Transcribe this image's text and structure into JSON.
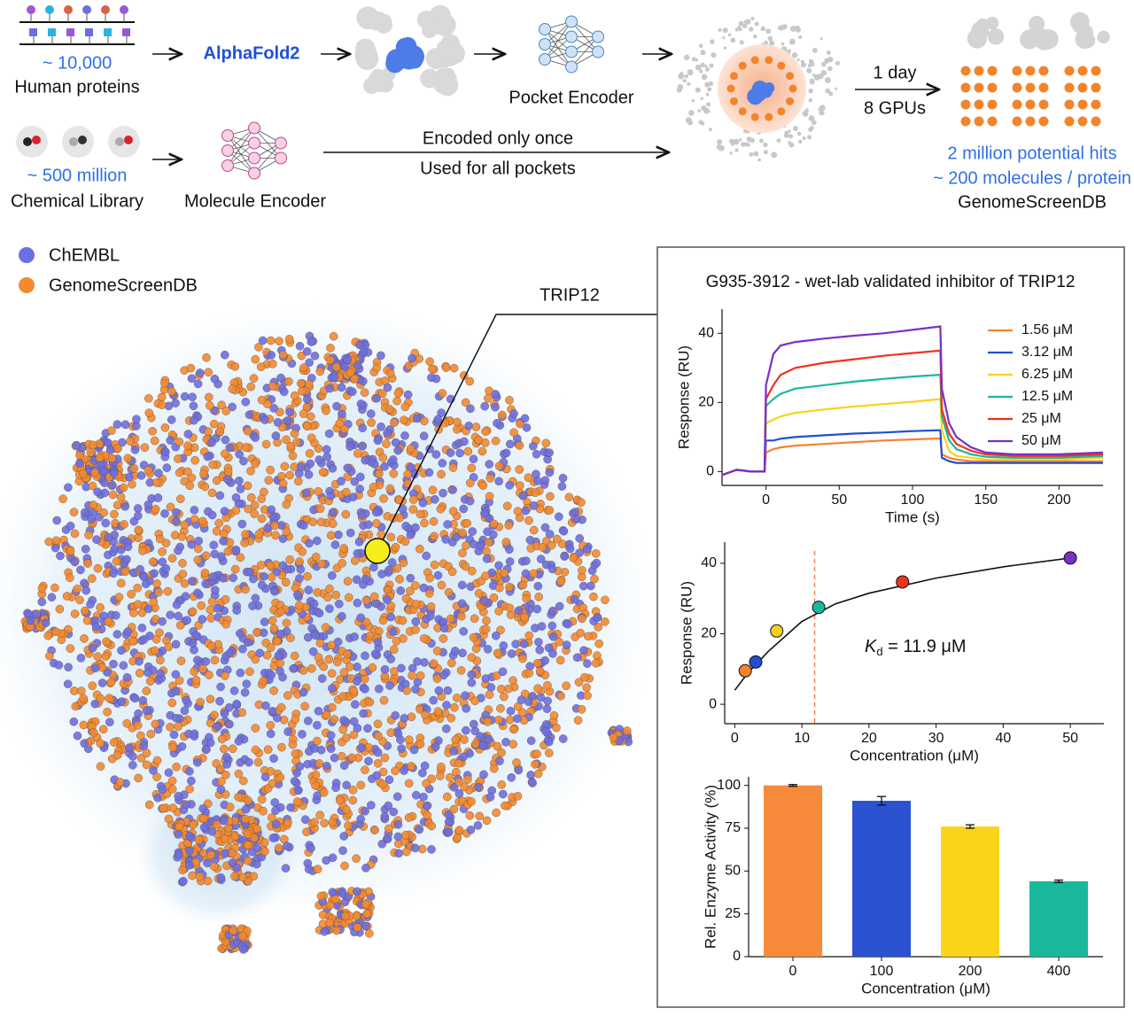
{
  "diagram": {
    "proteins_count": "~ 10,000",
    "proteins_label": "Human proteins",
    "alphafold": "AlphaFold2",
    "pocket_encoder": "Pocket Encoder",
    "library_count": "~ 500 million",
    "library_label": "Chemical Library",
    "molecule_encoder": "Molecule Encoder",
    "encoded_once": "Encoded only once",
    "used_all": "Used for all pockets",
    "time": "1 day",
    "gpus": "8 GPUs",
    "hits": "2 million potential hits",
    "per_protein": "~ 200 molecules / protein",
    "db": "GenomeScreenDB"
  },
  "embedding": {
    "legend": [
      {
        "name": "ChEMBL",
        "color": "#6b6fe0"
      },
      {
        "name": "GenomeScreenDB",
        "color": "#f28a30"
      }
    ],
    "highlight": "TRIP12"
  },
  "panel_title": "G935-3912 - wet-lab validated inhibitor of TRIP12",
  "chart_data": [
    {
      "type": "line",
      "xlabel": "Time (s)",
      "ylabel": "Response (RU)",
      "x": [
        -30,
        -20,
        -10,
        -1,
        0,
        5,
        10,
        20,
        40,
        60,
        80,
        100,
        119,
        120,
        125,
        130,
        140,
        150,
        170,
        200,
        230
      ],
      "series": [
        {
          "name": "1.56 μM",
          "color": "#f7802f",
          "values": [
            -1,
            0.5,
            0,
            0,
            5.5,
            6.5,
            7,
            7.5,
            8,
            8.5,
            9,
            9.3,
            9.6,
            5,
            4,
            3.5,
            3,
            3,
            3,
            3,
            3
          ]
        },
        {
          "name": "3.12 μM",
          "color": "#1f4fd1",
          "values": [
            -1,
            0.5,
            0,
            0,
            9,
            9,
            9.5,
            10,
            10.5,
            11,
            11.3,
            11.7,
            12,
            4,
            3,
            2.5,
            2.5,
            2.5,
            2.5,
            2.5,
            2.5
          ]
        },
        {
          "name": "6.25 μM",
          "color": "#f7d21a",
          "values": [
            -1,
            0.5,
            0,
            0,
            14,
            15,
            16,
            17,
            18,
            18.8,
            19.5,
            20.2,
            21,
            12,
            6,
            4.5,
            4,
            3.5,
            3.5,
            3.5,
            4
          ]
        },
        {
          "name": "12.5 μM",
          "color": "#1cb79c",
          "values": [
            -1,
            0.5,
            0,
            0,
            19,
            21,
            22.5,
            24,
            25,
            26,
            26.8,
            27.5,
            28,
            16,
            9,
            6.5,
            5,
            4.3,
            4,
            4,
            4.5
          ]
        },
        {
          "name": "25 μM",
          "color": "#f0321c",
          "values": [
            -1,
            0.5,
            0,
            0,
            21,
            25,
            28,
            30,
            31.5,
            32.5,
            33.5,
            34.3,
            35,
            18,
            11,
            8,
            6,
            5,
            4.5,
            4.5,
            5
          ]
        },
        {
          "name": "50 μM",
          "color": "#7a2fc7",
          "values": [
            -1,
            0.5,
            0,
            0,
            25,
            34,
            36.5,
            37.5,
            38.5,
            39.3,
            40,
            41,
            42,
            24,
            14,
            10,
            7,
            5.5,
            5,
            5,
            5.5
          ]
        }
      ],
      "xlim": [
        -30,
        230
      ],
      "xticks": [
        0,
        50,
        100,
        150,
        200
      ],
      "ylim": [
        -4,
        47
      ],
      "yticks": [
        0,
        20,
        40
      ],
      "legend": "upper right"
    },
    {
      "type": "scatter",
      "xlabel": "Concentration (μM)",
      "ylabel": "Response (RU)",
      "x": [
        1.56,
        3.12,
        6.25,
        12.5,
        25,
        50
      ],
      "values": [
        9.5,
        12,
        20.8,
        27.5,
        34.7,
        41.5
      ],
      "point_colors": [
        "#f7802f",
        "#1f4fd1",
        "#f7d21a",
        "#1cb79c",
        "#f0321c",
        "#7a2fc7"
      ],
      "fit": {
        "x": [
          0,
          2,
          5,
          10,
          15,
          20,
          30,
          40,
          50
        ],
        "values": [
          4,
          9,
          15,
          23.5,
          28.5,
          31.5,
          35.8,
          39,
          41.5
        ]
      },
      "kd_line": 11.9,
      "kd_color": "#f07a4a",
      "annotation": {
        "symbol": "K",
        "subscript": "d",
        "text": " = 11.9 μM"
      },
      "xlim": [
        -1.5,
        55
      ],
      "xticks": [
        0,
        10,
        20,
        30,
        40,
        50
      ],
      "ylim": [
        -5.5,
        46
      ],
      "yticks": [
        0,
        20,
        40
      ]
    },
    {
      "type": "bar",
      "xlabel": "Concentration (μM)",
      "ylabel": "Rel. Enzyme Activity (%)",
      "categories": [
        "0",
        "100",
        "200",
        "400"
      ],
      "values": [
        100,
        91,
        76,
        44
      ],
      "errors": [
        0.5,
        2.5,
        1,
        0.7
      ],
      "colors": [
        "#f7893a",
        "#2b52d0",
        "#fbd31b",
        "#1ab89b"
      ],
      "ylim": [
        0,
        105
      ],
      "yticks": [
        0,
        25,
        50,
        75,
        100
      ]
    }
  ]
}
